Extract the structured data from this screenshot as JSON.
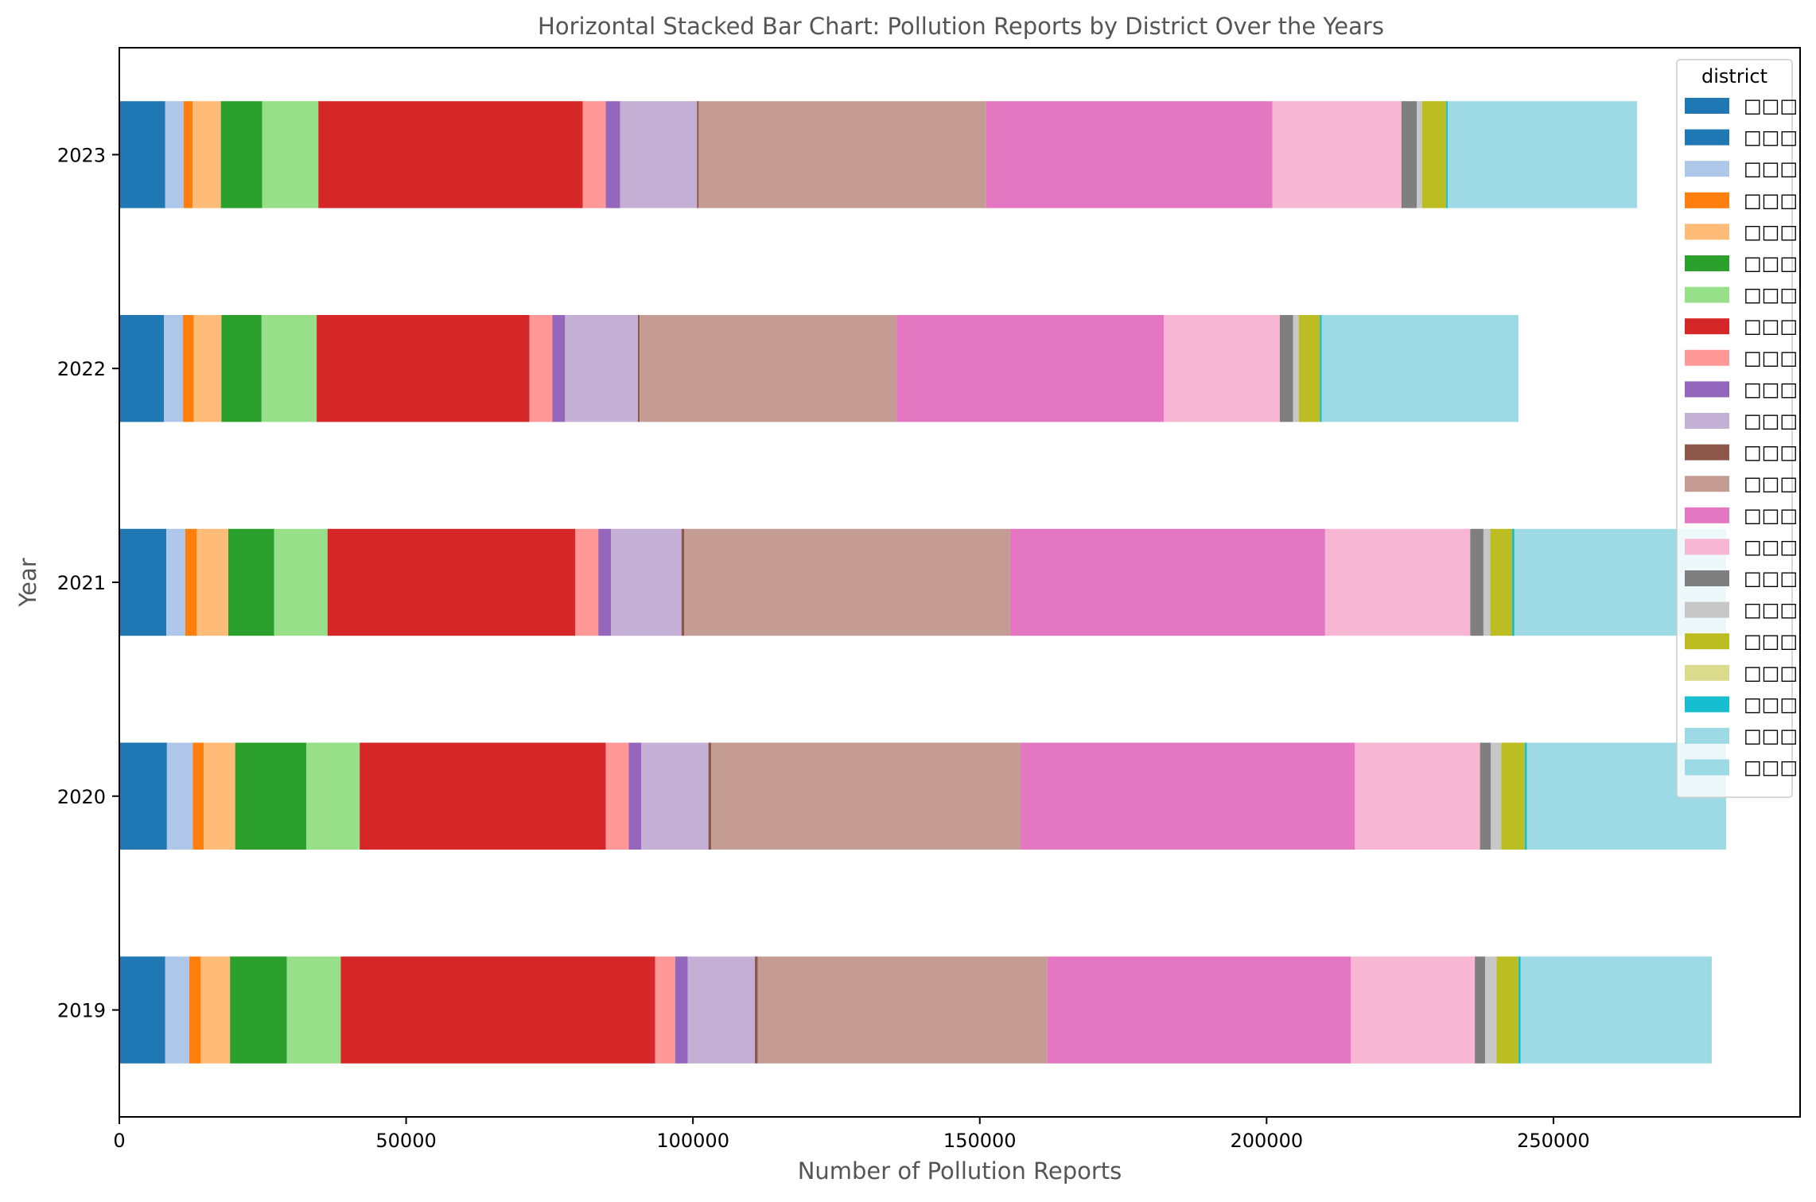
{
  "chart_data": {
    "type": "bar",
    "orientation": "horizontal",
    "stacked": true,
    "title": "Horizontal Stacked Bar Chart: Pollution Reports by District Over the Years",
    "xlabel": "Number of Pollution Reports",
    "ylabel": "Year",
    "categories": [
      "2019",
      "2020",
      "2021",
      "2022",
      "2023"
    ],
    "xlim": [
      0,
      293000
    ],
    "x_ticks": [
      0,
      50000,
      100000,
      150000,
      200000,
      250000
    ],
    "grid": false,
    "legend": {
      "title": "district",
      "placement": "top-right"
    },
    "series": [
      {
        "name": "□□□",
        "color": "#1f77b4",
        "values": [
          8000,
          8300,
          8200,
          7800,
          8000
        ]
      },
      {
        "name": "□□□",
        "color": "#1f77b4",
        "values": [
          0,
          0,
          0,
          0,
          0
        ]
      },
      {
        "name": "□□□",
        "color": "#aec7e8",
        "values": [
          4200,
          4500,
          3300,
          3300,
          3200
        ]
      },
      {
        "name": "□□□",
        "color": "#ff7f0e",
        "values": [
          2000,
          1900,
          2000,
          1900,
          1600
        ]
      },
      {
        "name": "□□□",
        "color": "#ffbb78",
        "values": [
          5100,
          5500,
          5500,
          4800,
          4900
        ]
      },
      {
        "name": "□□□",
        "color": "#2ca02c",
        "values": [
          9900,
          12400,
          8000,
          7000,
          7200
        ]
      },
      {
        "name": "□□□",
        "color": "#98df8a",
        "values": [
          9400,
          9300,
          9300,
          9600,
          9800
        ]
      },
      {
        "name": "□□□",
        "color": "#d62728",
        "values": [
          54800,
          42900,
          43200,
          37100,
          46100
        ]
      },
      {
        "name": "□□□",
        "color": "#ff9896",
        "values": [
          3500,
          4000,
          4000,
          4000,
          4000
        ]
      },
      {
        "name": "□□□",
        "color": "#9467bd",
        "values": [
          2200,
          2200,
          2200,
          2200,
          2500
        ]
      },
      {
        "name": "□□□",
        "color": "#c5b0d5",
        "values": [
          11700,
          11700,
          12300,
          12700,
          13400
        ]
      },
      {
        "name": "□□□",
        "color": "#8c564b",
        "values": [
          500,
          500,
          500,
          300,
          300
        ]
      },
      {
        "name": "□□□",
        "color": "#c49c94",
        "values": [
          50500,
          53900,
          56800,
          44800,
          50100
        ]
      },
      {
        "name": "□□□",
        "color": "#e377c2",
        "values": [
          52900,
          58300,
          54900,
          46600,
          49900
        ]
      },
      {
        "name": "□□□",
        "color": "#f7b6d2",
        "values": [
          21600,
          21800,
          25300,
          20200,
          22500
        ]
      },
      {
        "name": "□□□",
        "color": "#7f7f7f",
        "values": [
          1800,
          1900,
          2300,
          2300,
          2700
        ]
      },
      {
        "name": "□□□",
        "color": "#c7c7c7",
        "values": [
          2000,
          1800,
          1200,
          1000,
          900
        ]
      },
      {
        "name": "□□□",
        "color": "#bcbd22",
        "values": [
          3800,
          4100,
          3800,
          3700,
          4200
        ]
      },
      {
        "name": "□□□",
        "color": "#dbdb8d",
        "values": [
          0,
          0,
          0,
          0,
          0
        ]
      },
      {
        "name": "□□□",
        "color": "#17becf",
        "values": [
          400,
          400,
          400,
          300,
          300
        ]
      },
      {
        "name": "□□□",
        "color": "#9edae5",
        "values": [
          33300,
          34700,
          36900,
          34300,
          33000
        ]
      },
      {
        "name": "□□□",
        "color": "#9edae5",
        "values": [
          0,
          0,
          0,
          0,
          0
        ]
      }
    ]
  }
}
